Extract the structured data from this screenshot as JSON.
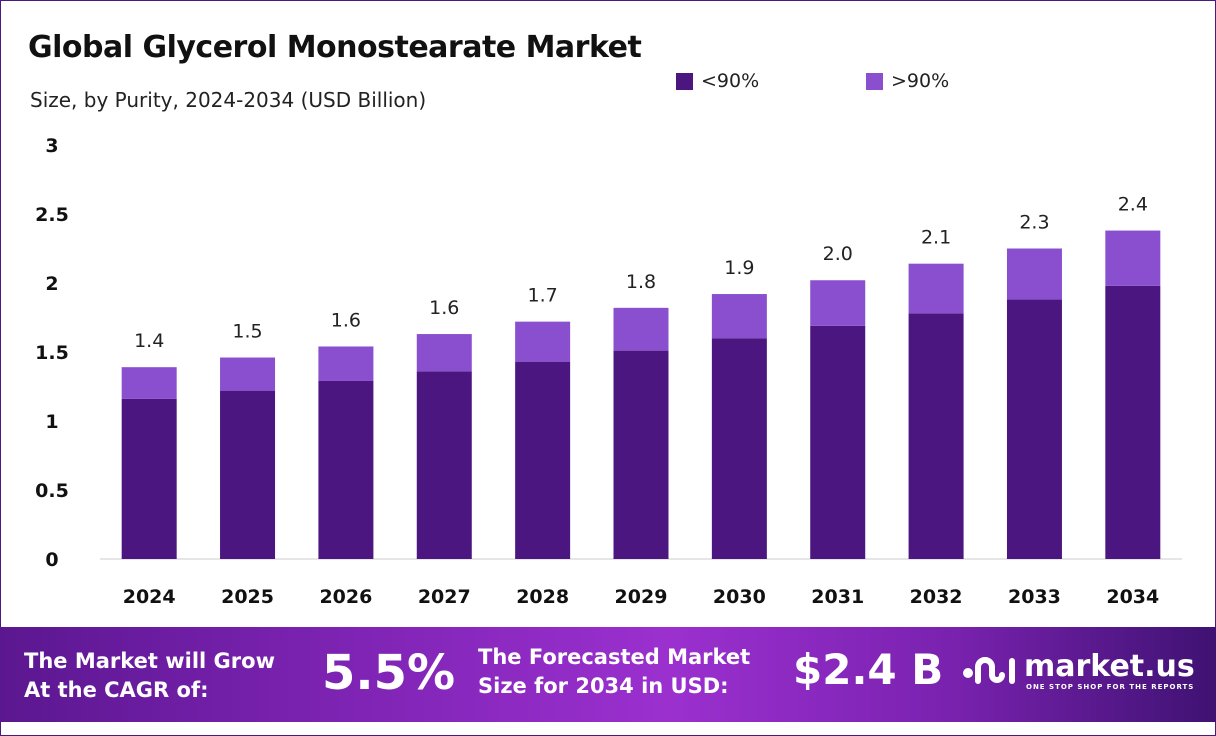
{
  "title": "Global Glycerol Monostearate Market",
  "subtitle": "Size, by Purity, 2024-2034 (USD Billion)",
  "colors": {
    "below_90": "#4c1680",
    "above_90": "#8a4fcf",
    "footer_accent": "#9b30cf"
  },
  "chart_data": {
    "type": "bar",
    "stacked": true,
    "categories": [
      "2024",
      "2025",
      "2026",
      "2027",
      "2028",
      "2029",
      "2030",
      "2031",
      "2032",
      "2033",
      "2034"
    ],
    "series": [
      {
        "name": "<90%",
        "values": [
          1.16,
          1.22,
          1.29,
          1.36,
          1.43,
          1.51,
          1.6,
          1.69,
          1.78,
          1.88,
          1.98
        ]
      },
      {
        "name": ">90%",
        "values": [
          0.23,
          0.24,
          0.25,
          0.27,
          0.29,
          0.31,
          0.32,
          0.33,
          0.36,
          0.37,
          0.4
        ]
      }
    ],
    "totals_labels": [
      "1.4",
      "1.5",
      "1.6",
      "1.6",
      "1.7",
      "1.8",
      "1.9",
      "2.0",
      "2.1",
      "2.3",
      "2.4"
    ],
    "ylim": [
      0,
      3
    ],
    "yticks": [
      "0",
      "0.5",
      "1",
      "1.5",
      "2",
      "2.5",
      "3"
    ],
    "grid": false,
    "legend_placement": "top"
  },
  "footer": {
    "cagr_text_line1": "The Market will Grow",
    "cagr_text_line2": "At the CAGR of:",
    "cagr_value": "5.5%",
    "forecast_text_line1": "The Forecasted Market",
    "forecast_text_line2": "Size for 2034 in USD:",
    "forecast_value": "$2.4 B",
    "brand": "market.us",
    "brand_tagline": "ONE STOP SHOP FOR THE REPORTS"
  }
}
